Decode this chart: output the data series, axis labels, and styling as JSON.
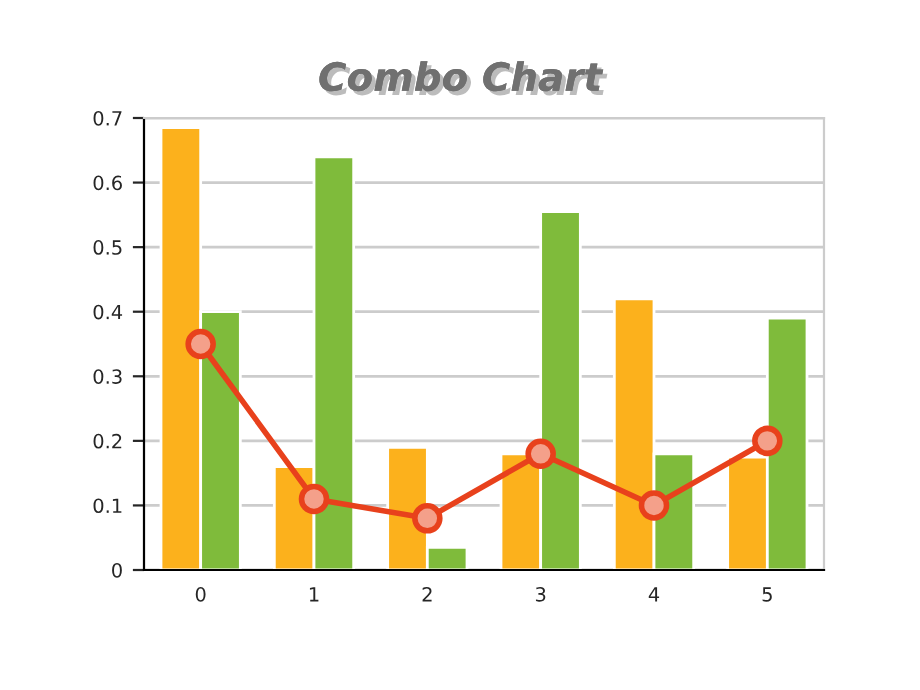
{
  "chart_data": {
    "type": "bar",
    "title": "Combo Chart",
    "categories": [
      "0",
      "1",
      "2",
      "3",
      "4",
      "5"
    ],
    "series": [
      {
        "color": "#fcb11c",
        "values": [
          0.685,
          0.16,
          0.19,
          0.18,
          0.42,
          0.175
        ]
      },
      {
        "color": "#7fbb3b",
        "values": [
          0.4,
          0.64,
          0.035,
          0.555,
          0.18,
          0.39
        ]
      },
      {
        "type": "line",
        "color": "#e8411c",
        "values": [
          0.35,
          0.11,
          0.08,
          0.18,
          0.1,
          0.2
        ]
      }
    ],
    "ylim": [
      0,
      0.7
    ],
    "yticks": [
      0,
      0.1,
      0.2,
      0.3,
      0.4,
      0.5,
      0.6,
      0.7
    ],
    "grid": "y",
    "marker": "circle",
    "line_style": "solid"
  }
}
